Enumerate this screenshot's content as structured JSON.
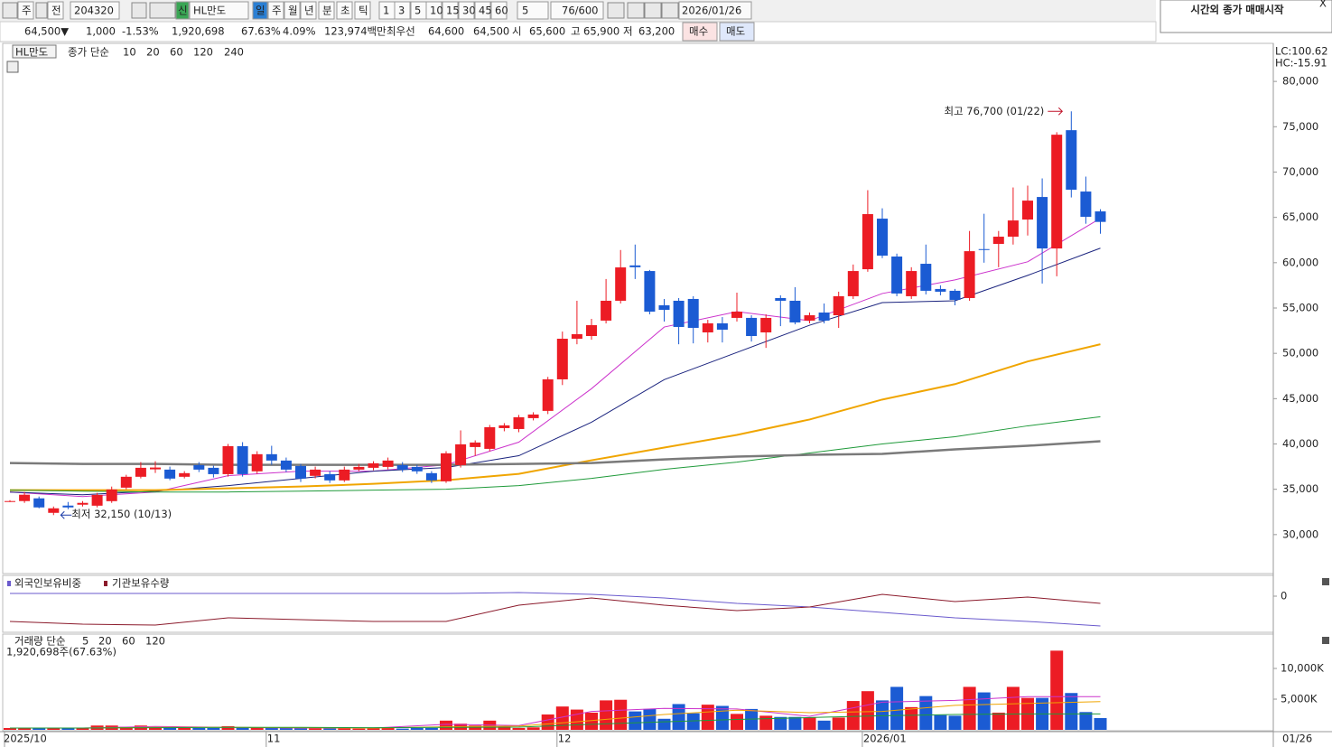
{
  "toolbar": {
    "items": [
      "주",
      "전",
      "204320",
      "신",
      "HL만도",
      "일",
      "주",
      "월",
      "년",
      "분",
      "초",
      "틱",
      "1",
      "3",
      "5",
      "10",
      "15",
      "30",
      "45",
      "60",
      "5",
      "76/600",
      "2026/01/26"
    ]
  },
  "quote": {
    "items": [
      "64,500▼",
      "1,000",
      "-1.53%",
      "1,920,698",
      "67.63%",
      "4.09%",
      "123,974백만",
      "최우선",
      "64,600",
      "64,500",
      "시",
      "65,600",
      "고",
      "65,900",
      "저",
      "63,200",
      "매수",
      "매도"
    ]
  },
  "notice": {
    "text": "시간외 종가 매매시작",
    "close": "X"
  },
  "chart_data": [
    {
      "type": "candlestick",
      "title": "HL만도",
      "ma_label": "종가 단순",
      "lc": "LC:100.62",
      "hc": "HC:-15.91",
      "last_date": "01/26",
      "high_label": "최고 76,700 (01/22)",
      "low_label": "최저 32,150 (10/13)",
      "categories": [
        "2025/10",
        null,
        null,
        null,
        null,
        null,
        null,
        null,
        null,
        null,
        null,
        null,
        null,
        null,
        null,
        null,
        null,
        null,
        "11",
        null,
        null,
        null,
        null,
        null,
        null,
        null,
        null,
        null,
        null,
        null,
        null,
        null,
        null,
        null,
        null,
        null,
        null,
        null,
        "12",
        null,
        null,
        null,
        null,
        null,
        null,
        null,
        null,
        null,
        null,
        null,
        null,
        null,
        null,
        null,
        null,
        null,
        null,
        null,
        null,
        "2026/01",
        null,
        null,
        null,
        null,
        null,
        null,
        null,
        null,
        null,
        null,
        null,
        null,
        null,
        null,
        null,
        null
      ],
      "open": [
        33700,
        33700,
        34000,
        32400,
        33200,
        33300,
        33190,
        33690,
        35180,
        36380,
        37200,
        37170,
        36380,
        37670,
        37370,
        36670,
        39760,
        36980,
        38870,
        38170,
        37570,
        36480,
        36670,
        35980,
        37170,
        37370,
        37470,
        37670,
        37470,
        36780,
        35880,
        37670,
        39660,
        39460,
        41750,
        41650,
        42850,
        43650,
        47130,
        51610,
        51910,
        53610,
        55800,
        59700,
        59080,
        55300,
        55800,
        56000,
        52310,
        53310,
        53910,
        53910,
        52310,
        56100,
        55800,
        53610,
        54500,
        54200,
        56300,
        59280,
        64860,
        60680,
        56300,
        59880,
        57100,
        56900,
        56100,
        61500,
        62070,
        62870,
        64760,
        67250,
        61570,
        74620,
        67850,
        65660
      ],
      "high": [
        33800,
        34700,
        34200,
        33100,
        33600,
        33700,
        34600,
        35300,
        36600,
        38000,
        38100,
        37500,
        37000,
        38000,
        37600,
        40000,
        40200,
        39200,
        39800,
        38500,
        37800,
        37500,
        37000,
        37500,
        37800,
        38100,
        38500,
        38000,
        37700,
        37000,
        39200,
        41500,
        40400,
        42100,
        42300,
        43200,
        43500,
        47400,
        52400,
        55800,
        53800,
        58200,
        61400,
        62000,
        59200,
        56000,
        56100,
        56300,
        53700,
        54000,
        56700,
        54200,
        54300,
        56400,
        57300,
        54500,
        55500,
        56800,
        59800,
        68000,
        66000,
        61000,
        59500,
        62000,
        57500,
        57100,
        63500,
        65400,
        63500,
        68300,
        68500,
        69300,
        74400,
        76700,
        69500,
        65900
      ],
      "low": [
        33600,
        33500,
        32900,
        32150,
        32800,
        33100,
        33000,
        33500,
        35000,
        36200,
        36800,
        36000,
        36200,
        36900,
        36300,
        36400,
        36400,
        36700,
        37700,
        36900,
        35800,
        36200,
        35700,
        35800,
        37000,
        37100,
        37200,
        36900,
        36700,
        35700,
        35700,
        37400,
        38700,
        39200,
        41400,
        41300,
        42600,
        43300,
        46500,
        51000,
        51500,
        53300,
        55500,
        58200,
        54300,
        53500,
        51000,
        51100,
        51200,
        51200,
        53500,
        51300,
        50600,
        53000,
        53200,
        53300,
        53300,
        52800,
        56000,
        59000,
        60500,
        56300,
        56000,
        56500,
        56400,
        55300,
        55800,
        60000,
        59500,
        62000,
        63000,
        57700,
        58500,
        67200,
        64300,
        63200
      ],
      "close": [
        33700,
        34400,
        33000,
        32900,
        33000,
        33500,
        34380,
        34980,
        36380,
        37370,
        37400,
        36180,
        36780,
        37170,
        36670,
        39760,
        36670,
        38870,
        38170,
        37170,
        36180,
        37170,
        35980,
        37170,
        37470,
        37870,
        38170,
        37170,
        36980,
        35980,
        38970,
        39960,
        40160,
        41850,
        42050,
        42950,
        43250,
        47130,
        51610,
        52110,
        53110,
        55800,
        59480,
        59500,
        54600,
        54800,
        52910,
        52810,
        53310,
        52610,
        54600,
        51910,
        53910,
        55800,
        53410,
        54200,
        53610,
        56300,
        59080,
        65360,
        60780,
        56600,
        59080,
        56900,
        56800,
        55900,
        61270,
        61400,
        62870,
        64660,
        66850,
        61570,
        74120,
        68050,
        65060,
        64500
      ],
      "up_color": "#ec1c24",
      "down_color": "#1b5bd3",
      "ylim": [
        25700,
        84200
      ],
      "yticks": [
        {
          "value": 30000,
          "label": "30,000"
        },
        {
          "value": 35000,
          "label": "35,000"
        },
        {
          "value": 40000,
          "label": "40,000"
        },
        {
          "value": 45000,
          "label": "45,000"
        },
        {
          "value": 50000,
          "label": "50,000"
        },
        {
          "value": 55000,
          "label": "55,000"
        },
        {
          "value": 60000,
          "label": "60,000"
        },
        {
          "value": 65000,
          "label": "65,000"
        },
        {
          "value": 70000,
          "label": "70,000"
        },
        {
          "value": 75000,
          "label": "75,000"
        },
        {
          "value": 80000,
          "label": "80,000"
        }
      ],
      "ma_x": [
        0,
        5,
        10,
        15,
        20,
        25,
        30,
        35,
        40,
        45,
        50,
        55,
        60,
        65,
        70,
        75
      ],
      "ma_series": [
        {
          "name": "10",
          "color": "#cc33cc",
          "width": 1,
          "values": [
            34700,
            34200,
            34700,
            36500,
            37000,
            37000,
            37700,
            40200,
            46100,
            52900,
            54600,
            53600,
            56600,
            58100,
            60100,
            64900
          ]
        },
        {
          "name": "20",
          "color": "#1a237e",
          "width": 1,
          "values": [
            34700,
            34400,
            34800,
            35400,
            36200,
            37000,
            37400,
            38700,
            42400,
            47100,
            50100,
            53100,
            55600,
            55800,
            58600,
            61600
          ]
        },
        {
          "name": "60",
          "color": "#f0a500",
          "width": 2,
          "values": [
            34900,
            34900,
            34900,
            35100,
            35300,
            35600,
            36000,
            36700,
            38200,
            39600,
            41000,
            42700,
            44900,
            46600,
            49100,
            51000
          ]
        },
        {
          "name": "120",
          "color": "#1f9a3a",
          "width": 1,
          "values": [
            34900,
            34800,
            34700,
            34700,
            34800,
            34900,
            35000,
            35400,
            36200,
            37200,
            38000,
            39000,
            40000,
            40800,
            42000,
            43000
          ]
        },
        {
          "name": "240",
          "color": "#7a7a7a",
          "width": 2.5,
          "values": [
            37900,
            37800,
            37800,
            37700,
            37700,
            37700,
            37700,
            37800,
            37900,
            38300,
            38600,
            38800,
            38900,
            39400,
            39800,
            40300
          ]
        }
      ]
    },
    {
      "type": "line",
      "x": [
        0,
        5,
        10,
        15,
        20,
        25,
        30,
        35,
        40,
        45,
        50,
        55,
        60,
        65,
        70,
        75
      ],
      "ylim": [
        -40,
        20
      ],
      "yticks": [
        0
      ],
      "series": [
        {
          "name": "외국인보유비중",
          "color": "#6a5acd",
          "values": [
            3,
            3,
            3,
            3,
            3,
            3,
            3,
            4,
            2,
            -2,
            -8,
            -12,
            -18,
            -24,
            -28,
            -33
          ]
        },
        {
          "name": "기관보유수량",
          "color": "#8b1a2b",
          "values": [
            -28,
            -31,
            -32,
            -24,
            -26,
            -28,
            -28,
            -10,
            -2,
            -10,
            -16,
            -12,
            2,
            -6,
            -1,
            -8
          ]
        }
      ]
    },
    {
      "type": "bar",
      "title": "거래량 단순",
      "unit_label": "1,920,698주(67.63%)",
      "values": [
        300,
        300,
        300,
        300,
        300,
        300,
        700,
        700,
        500,
        700,
        400,
        400,
        300,
        300,
        300,
        600,
        400,
        300,
        300,
        300,
        300,
        300,
        300,
        300,
        200,
        300,
        300,
        200,
        300,
        300,
        1500,
        1000,
        700,
        1500,
        500,
        300,
        400,
        2500,
        3800,
        3300,
        2800,
        4800,
        4900,
        3000,
        3400,
        1800,
        4200,
        2700,
        4100,
        3900,
        2600,
        3400,
        2300,
        2100,
        2100,
        2000,
        1500,
        2000,
        4700,
        6300,
        4800,
        7000,
        3700,
        5500,
        2400,
        2300,
        7000,
        6100,
        2800,
        7000,
        5200,
        5200,
        12900,
        6000,
        2900,
        1920.698
      ],
      "ylim": [
        0,
        15600
      ],
      "yticks": [
        {
          "value": 5000,
          "label": "5,000K"
        },
        {
          "value": 10000,
          "label": "10,000K"
        }
      ],
      "ma_x": [
        0,
        5,
        10,
        15,
        20,
        25,
        30,
        35,
        40,
        45,
        50,
        55,
        60,
        65,
        70,
        75
      ],
      "ma_series": [
        {
          "name": "5",
          "color": "#cc33cc",
          "values": [
            300,
            300,
            550,
            400,
            300,
            300,
            900,
            700,
            3000,
            3500,
            3400,
            2200,
            4500,
            4800,
            5400,
            5400
          ]
        },
        {
          "name": "20",
          "color": "#f0a500",
          "values": [
            300,
            300,
            400,
            400,
            350,
            300,
            500,
            600,
            1500,
            2500,
            3200,
            2800,
            3000,
            4000,
            4300,
            4600
          ]
        },
        {
          "name": "60",
          "color": "#1f9a3a",
          "values": [
            300,
            300,
            350,
            400,
            400,
            350,
            400,
            450,
            900,
            1300,
            1700,
            2000,
            2300,
            2500,
            2600,
            2600
          ]
        },
        {
          "name": "120",
          "color": "#7a7a7a",
          "values": [
            null,
            null,
            null,
            null,
            null,
            null,
            null,
            null,
            null,
            null,
            null,
            null,
            null,
            null,
            null,
            null
          ]
        }
      ]
    }
  ]
}
